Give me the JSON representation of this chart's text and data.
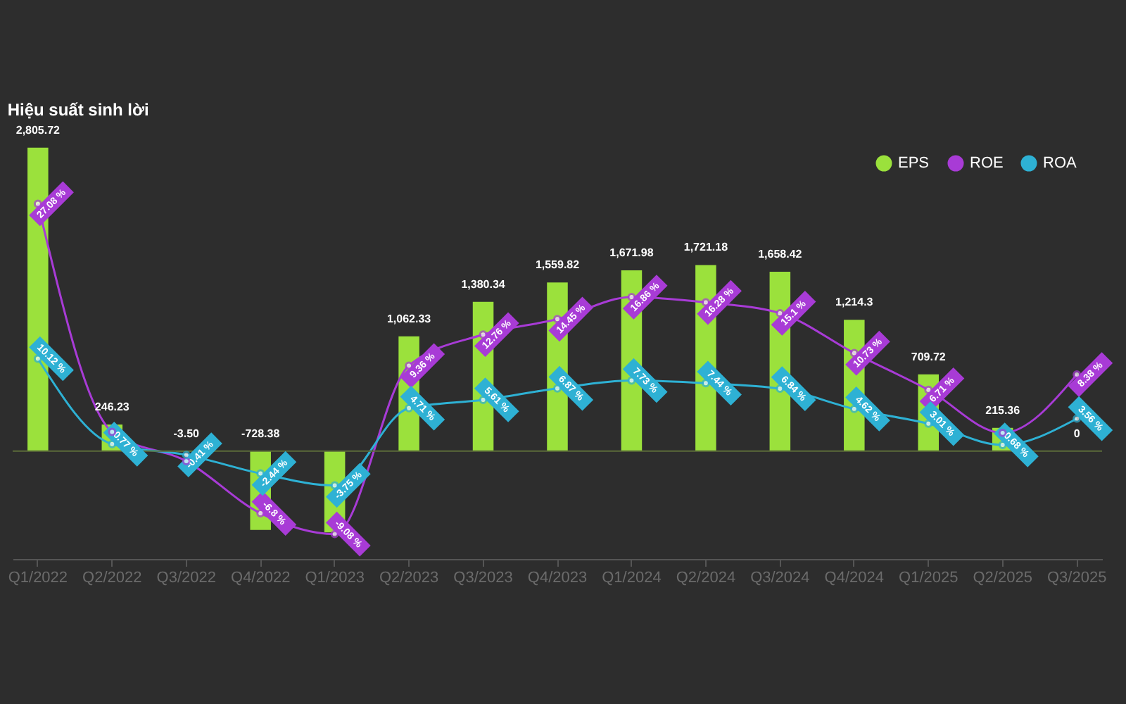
{
  "chart_data": {
    "type": "bar",
    "title": "Hiệu suất sinh lời",
    "categories": [
      "Q1/2022",
      "Q2/2022",
      "Q3/2022",
      "Q4/2022",
      "Q1/2023",
      "Q2/2023",
      "Q3/2023",
      "Q4/2023",
      "Q1/2024",
      "Q2/2024",
      "Q3/2024",
      "Q4/2024",
      "Q1/2025",
      "Q2/2025",
      "Q3/2025"
    ],
    "series": [
      {
        "name": "EPS",
        "color": "#9be13c",
        "values": [
          2805.72,
          246.23,
          -3.5,
          -728.38,
          -752,
          1062.33,
          1380.34,
          1559.82,
          1671.98,
          1721.18,
          1658.42,
          1214.3,
          709.72,
          215.36,
          0
        ],
        "value_labels": [
          "2,805.72",
          "246.23",
          "-3.50",
          "-728.38",
          null,
          "1,062.33",
          "1,380.34",
          "1,559.82",
          "1,671.98",
          "1,721.18",
          "1,658.42",
          "1,214.3",
          "709.72",
          "215.36",
          "0"
        ]
      },
      {
        "name": "ROE",
        "type": "line",
        "axis": "y2",
        "color": "#a83bd6",
        "values": [
          27.08,
          2.1,
          -1.1,
          -6.8,
          -9.08,
          9.36,
          12.76,
          14.45,
          16.86,
          16.28,
          15.1,
          10.73,
          6.71,
          2.0,
          8.38
        ],
        "value_labels": [
          "27.08 %",
          null,
          null,
          "-6.8 %",
          "-9.08 %",
          "9.36 %",
          "12.76 %",
          "14.45 %",
          "16.86 %",
          "16.28 %",
          "15.1 %",
          "10.73 %",
          "6.71 %",
          null,
          "8.38 %"
        ]
      },
      {
        "name": "ROA",
        "type": "line",
        "axis": "y2",
        "color": "#2eb1d4",
        "values": [
          10.12,
          0.77,
          -0.41,
          -2.44,
          -3.75,
          4.71,
          5.61,
          6.87,
          7.73,
          7.44,
          6.84,
          4.62,
          3.01,
          0.68,
          3.56
        ],
        "value_labels": [
          "10.12 %",
          "0.77 %",
          "-0.41 %",
          "-2.44 %",
          "-3.75 %",
          "4.71 %",
          "5.61 %",
          "6.87 %",
          "7.73 %",
          "7.44 %",
          "6.84 %",
          "4.62 %",
          "3.01 %",
          "0.68 %",
          "3.56 %"
        ]
      }
    ],
    "ref_lines": [
      {
        "axis": "y",
        "value": 0,
        "label": null
      }
    ],
    "tick_labels": "x",
    "grid": false,
    "legend": "top right",
    "marker": "circle",
    "line_style": "solid"
  }
}
